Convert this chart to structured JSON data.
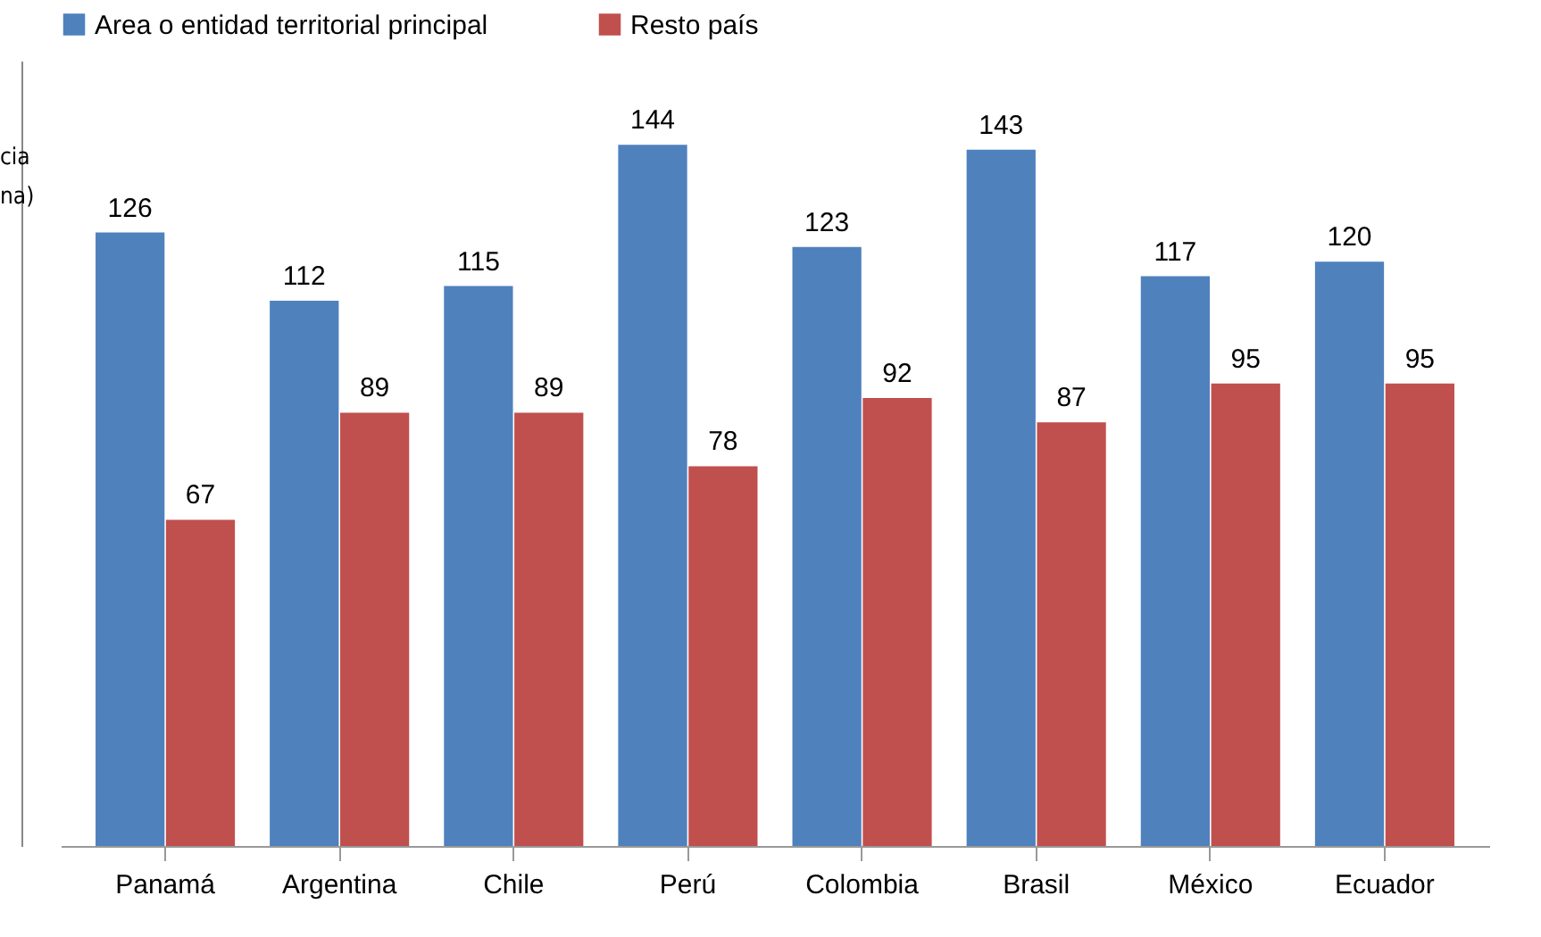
{
  "chart_data": {
    "type": "bar",
    "categories": [
      "Panamá",
      "Argentina",
      "Chile",
      "Perú",
      "Colombia",
      "Brasil",
      "México",
      "Ecuador"
    ],
    "series": [
      {
        "name": "Area o entidad territorial principal",
        "color": "#4f81bd",
        "values": [
          126,
          112,
          115,
          144,
          123,
          143,
          117,
          120
        ]
      },
      {
        "name": "Resto país",
        "color": "#c0504d",
        "values": [
          67,
          89,
          89,
          78,
          92,
          87,
          95,
          95
        ]
      }
    ],
    "data_labels": true,
    "legend": "top",
    "grid": false,
    "annotations": [
      "cia",
      "na)"
    ]
  }
}
